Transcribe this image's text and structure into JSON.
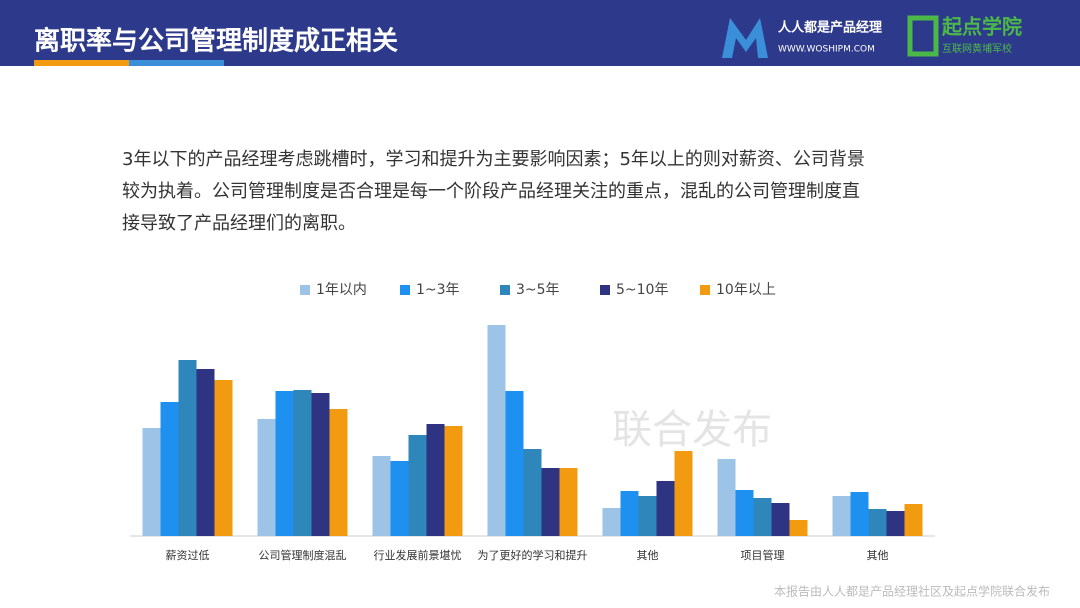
{
  "header": {
    "title": "离职率与公司管理制度成正相关",
    "logo1": "人人都是产品经理",
    "logo1_url": "WWW.WOSHIPM.COM",
    "logo2": "起点学院",
    "logo2_sub": "互联网黄埔军校"
  },
  "paragraph": [
    "3年以下的产品经理考虑跳槽时，学习和提升为主要影响因素；5年以上的则对薪资、公司背景",
    "较为执着。公司管理制度是否合理是每一个阶段产品经理关注的重点，混乱的公司管理制度直",
    "接导致了产品经理们的离职。"
  ],
  "watermark": "联合发布",
  "footer": "本报告由人人都是产品经理社区及起点学院联合发布",
  "chart_data": {
    "type": "bar",
    "categories": [
      "薪资过低",
      "公司管理制度混乱",
      "行业发展前景堪忧",
      "为了更好的学习和提升",
      "其他",
      "项目管理",
      "其他"
    ],
    "series": [
      {
        "name": "1年以内",
        "color": "#9dc3e6",
        "values": [
          108,
          117,
          80,
          211,
          28,
          77,
          40
        ]
      },
      {
        "name": "1~3年",
        "color": "#1e90f0",
        "values": [
          134,
          145,
          75,
          145,
          45,
          46,
          44
        ]
      },
      {
        "name": "3~5年",
        "color": "#2f86bb",
        "values": [
          176,
          146,
          101,
          87,
          40,
          38,
          27
        ]
      },
      {
        "name": "5~10年",
        "color": "#2e3482",
        "values": [
          167,
          143,
          112,
          68,
          55,
          33,
          25
        ]
      },
      {
        "name": "10年以上",
        "color": "#f29b11",
        "values": [
          156,
          127,
          110,
          68,
          85,
          16,
          32
        ]
      }
    ],
    "legend": "top"
  }
}
